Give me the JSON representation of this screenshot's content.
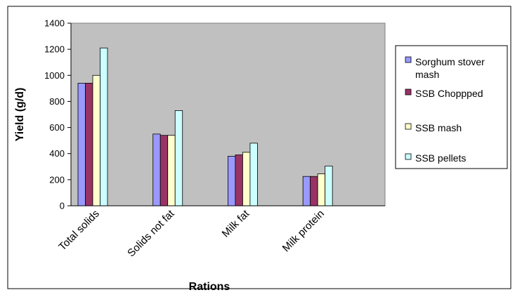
{
  "chart_data": {
    "type": "bar",
    "title": "",
    "xlabel": "Rations",
    "ylabel": "Yield (g/d)",
    "ylim": [
      0,
      1400
    ],
    "yticks": [
      0,
      200,
      400,
      600,
      800,
      1000,
      1200,
      1400
    ],
    "grid": false,
    "legend_position": "right",
    "plot_background": "#c0c0c0",
    "categories": [
      "Total solids",
      "Solids not fat",
      "Milk fat",
      "Milk protein"
    ],
    "series": [
      {
        "name": "Sorghum stover mash",
        "color": "#9999ff",
        "values": [
          940,
          550,
          380,
          225
        ]
      },
      {
        "name": "SSB Choppped",
        "color": "#993366",
        "values": [
          940,
          540,
          390,
          225
        ]
      },
      {
        "name": "SSB mash",
        "color": "#ffffcc",
        "values": [
          1000,
          540,
          410,
          245
        ]
      },
      {
        "name": "SSB pellets",
        "color": "#ccffff",
        "values": [
          1210,
          730,
          480,
          305
        ]
      }
    ]
  }
}
